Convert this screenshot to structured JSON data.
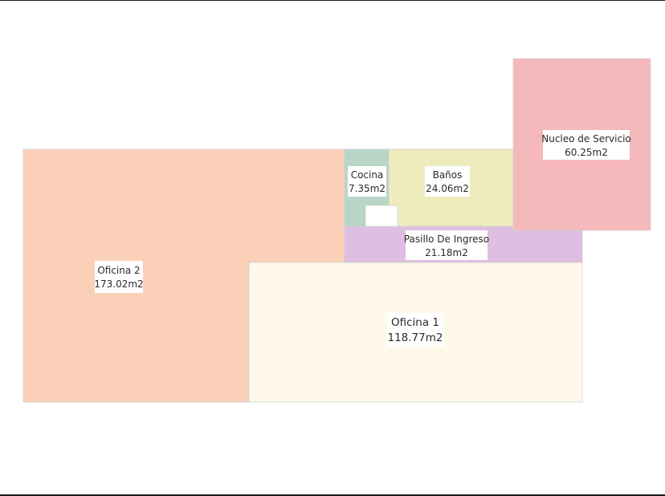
{
  "rooms": {
    "oficina_2": {
      "name": "Oficina 2",
      "area": "173.02m2",
      "color": "#fbd0b9"
    },
    "oficina_1": {
      "name": "Oficina 1",
      "area": "118.77m2",
      "color": "#fef9e9"
    },
    "pasillo": {
      "name": "Pasillo De Ingreso",
      "area": "21.18m2",
      "color": "#dfbfe1"
    },
    "cocina": {
      "name": "Cocina",
      "area": "7.35m2",
      "color": "#b7d6c5"
    },
    "banos": {
      "name": "Baños",
      "area": "24.06m2",
      "color": "#eeebbd"
    },
    "nucleo": {
      "name": "Nucleo de Servicio",
      "area": "60.25m2",
      "color": "#f5b8bb"
    }
  }
}
